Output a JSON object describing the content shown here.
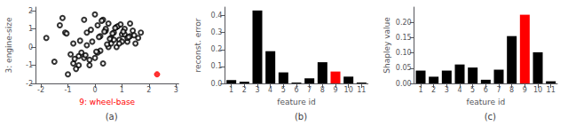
{
  "chart_data": [
    {
      "type": "scatter",
      "xlabel": "9: wheel-base",
      "ylabel": "3: engine-size",
      "annotation": "(a)",
      "xlim": [
        -2.2,
        3.1
      ],
      "ylim": [
        -2.0,
        2.2
      ],
      "xticks": [
        -2,
        -1,
        0,
        1,
        2,
        3
      ],
      "yticks": [
        -2,
        -1,
        0,
        1,
        2
      ],
      "grid": false,
      "series": [
        {
          "color": "black",
          "marker": "circle_open",
          "x": [
            -1.8,
            -1.5,
            -1.3,
            -1.0,
            -0.8,
            -0.6,
            -0.4,
            -0.3,
            -0.2,
            -0.1,
            0.0,
            0.1,
            0.2,
            0.3,
            0.4,
            0.5,
            0.6,
            0.7,
            0.8,
            0.9,
            1.0,
            1.1,
            1.2,
            1.3,
            1.4,
            1.5,
            1.6,
            1.7,
            -0.5,
            -0.7,
            0.0,
            0.5,
            1.0,
            0.3,
            0.8,
            -0.2,
            0.6,
            1.2,
            -0.9,
            -0.3,
            0.2,
            0.7,
            1.1,
            -0.6,
            0.1,
            0.9,
            -1.1,
            0.4,
            1.3,
            -0.4,
            -1.2,
            -0.8,
            0.15,
            0.65,
            1.05,
            -0.35,
            0.85,
            0.25,
            -0.55,
            1.45,
            0.55,
            0.95,
            -0.15,
            0.45,
            1.25,
            -0.75,
            0.05,
            0.75,
            -1.05,
            0.35
          ],
          "y": [
            0.5,
            -0.8,
            1.2,
            -1.5,
            0.2,
            -0.5,
            1.5,
            0.8,
            -1.0,
            0.3,
            1.8,
            1.2,
            0.6,
            1.5,
            0.9,
            1.3,
            0.5,
            0.8,
            1.1,
            0.4,
            0.7,
            1.0,
            0.3,
            0.6,
            0.9,
            0.2,
            0.5,
            0.8,
            -0.3,
            -1.2,
            -0.6,
            0.0,
            0.3,
            -0.9,
            0.0,
            -0.7,
            0.2,
            0.5,
            -0.4,
            0.1,
            -0.2,
            0.4,
            0.7,
            -1.0,
            -0.3,
            0.2,
            0.8,
            1.0,
            1.3,
            -0.6,
            1.6,
            -0.9,
            0.55,
            0.75,
            0.85,
            -0.45,
            1.15,
            1.45,
            0.35,
            0.65,
            0.45,
            1.25,
            0.95,
            0.15,
            0.55,
            -0.65,
            -0.25,
            1.05,
            0.75,
            0.85
          ]
        },
        {
          "color": "red",
          "marker": "circle",
          "x": [
            2.3
          ],
          "y": [
            -1.5
          ]
        }
      ]
    },
    {
      "type": "bar",
      "xlabel": "feature id",
      "ylabel": "reconst. error",
      "annotation": "(b)",
      "categories": [
        "1",
        "2",
        "3",
        "4",
        "5",
        "6",
        "7",
        "8",
        "9",
        "10",
        "11"
      ],
      "values": [
        0.02,
        0.01,
        0.43,
        0.19,
        0.065,
        0.005,
        0.03,
        0.125,
        0.07,
        0.04,
        0.005
      ],
      "colors": [
        "black",
        "black",
        "black",
        "black",
        "black",
        "black",
        "black",
        "black",
        "red",
        "black",
        "black"
      ],
      "ylim": [
        0,
        0.45
      ],
      "yticks": [
        {
          "value": 0,
          "label": "0.0"
        },
        0.1,
        0.2,
        0.3,
        0.4
      ],
      "grid": false
    },
    {
      "type": "bar",
      "xlabel": "feature id",
      "ylabel": "Shapley value",
      "annotation": "(c)",
      "categories": [
        "1",
        "2",
        "3",
        "4",
        "5",
        "6",
        "7",
        "8",
        "9",
        "10",
        "11"
      ],
      "values": [
        0.042,
        0.022,
        0.042,
        0.062,
        0.052,
        0.012,
        0.045,
        0.155,
        0.225,
        0.102,
        0.007
      ],
      "colors": [
        "black",
        "black",
        "black",
        "black",
        "black",
        "black",
        "black",
        "black",
        "red",
        "black",
        "black"
      ],
      "ylim": [
        0,
        0.25
      ],
      "yticks": [
        {
          "value": 0,
          "label": "0.00"
        },
        0.05,
        {
          "value": 0.1,
          "label": "0.10"
        },
        0.15,
        {
          "value": 0.2,
          "label": "0.20"
        }
      ],
      "grid": false
    }
  ]
}
